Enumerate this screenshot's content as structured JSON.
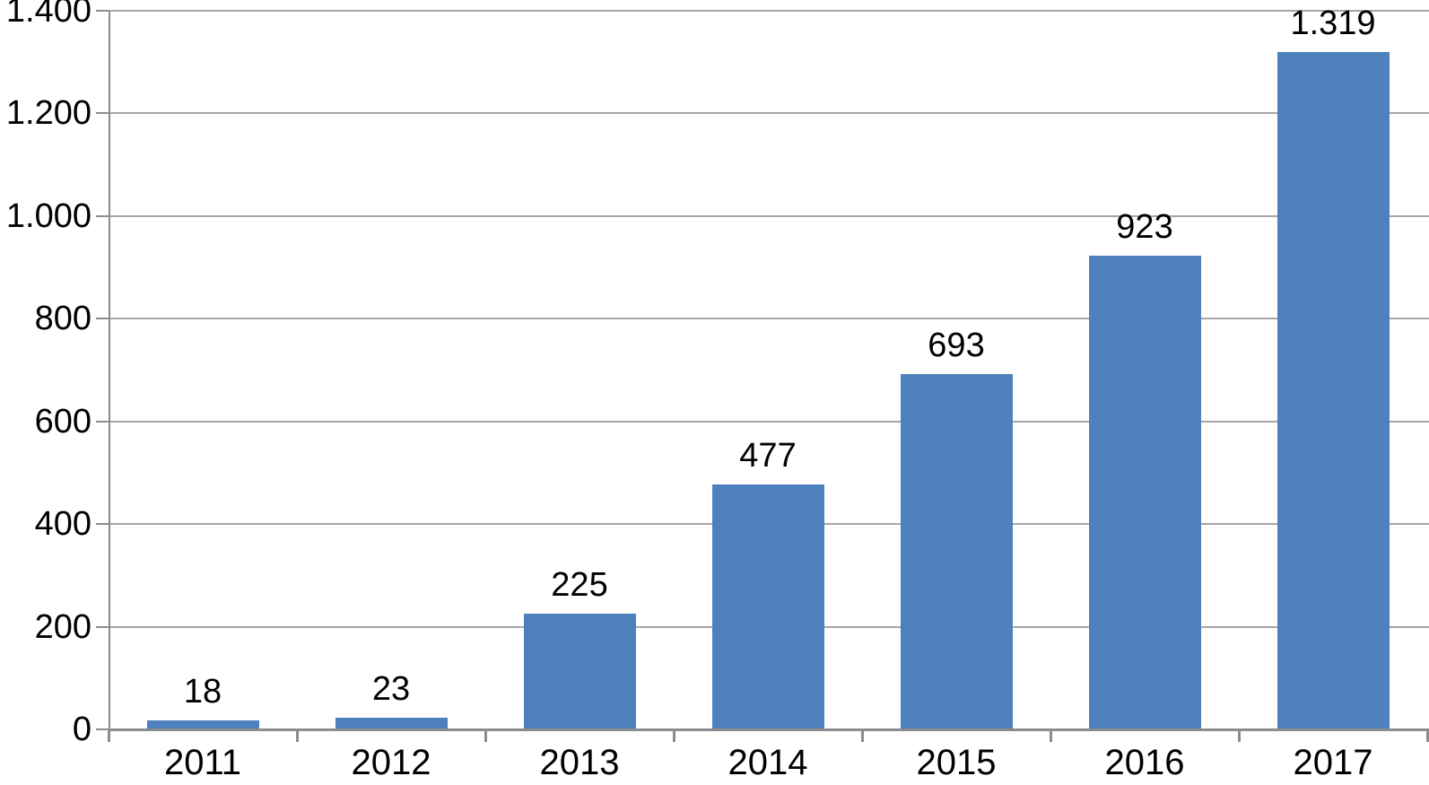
{
  "chart_data": {
    "type": "bar",
    "title": "",
    "categories": [
      "2011",
      "2012",
      "2013",
      "2014",
      "2015",
      "2016",
      "2017"
    ],
    "values": [
      18,
      23,
      225,
      477,
      693,
      923,
      1319
    ],
    "value_labels": [
      "18",
      "23",
      "225",
      "477",
      "693",
      "923",
      "1.319"
    ],
    "y_tick_values": [
      0,
      200,
      400,
      600,
      800,
      1000,
      1200,
      1400
    ],
    "y_tick_labels": [
      "0",
      "200",
      "400",
      "600",
      "800",
      "1.000",
      "1.200",
      "1.400"
    ],
    "ylim": [
      0,
      1400
    ],
    "xlabel": "",
    "ylabel": "",
    "legend": "none",
    "grid": "horizontal",
    "number_format": "dot-thousands-separator",
    "colors": {
      "bar_fill": "#4d80bc",
      "gridline": "#a6a6a6",
      "axis": "#8c8c8c",
      "tick": "#8c8c8c",
      "text": "#000000",
      "background": "#ffffff"
    }
  }
}
